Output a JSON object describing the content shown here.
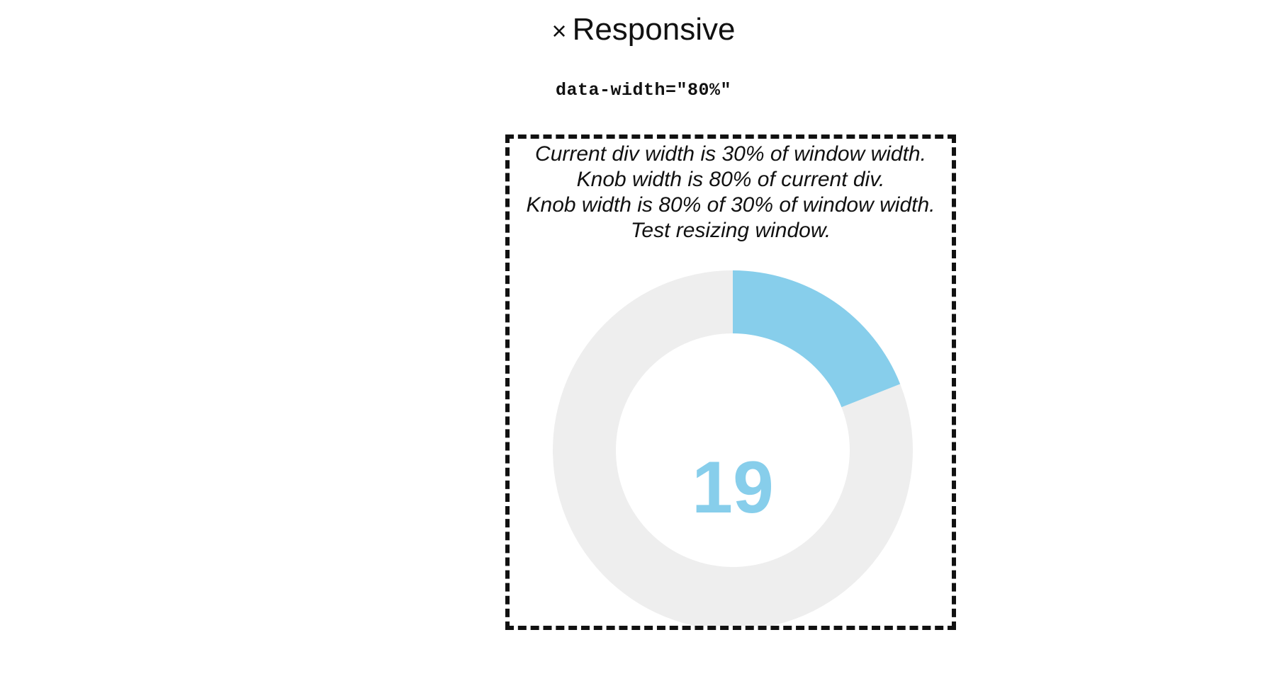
{
  "header": {
    "title": "Responsive",
    "close_glyph": "×",
    "close_icon": "close-icon",
    "code": "data-width=\"80%\""
  },
  "demo": {
    "lines": [
      "Current div width is 30% of window width.",
      "Knob width is 80% of current div.",
      "Knob width is 80% of 30% of window width.",
      "Test resizing window."
    ],
    "knob": {
      "value": 19,
      "min": 0,
      "max": 100,
      "fg_color": "#87ceeb",
      "bg_color": "#eeeeee",
      "value_text": "19"
    }
  }
}
